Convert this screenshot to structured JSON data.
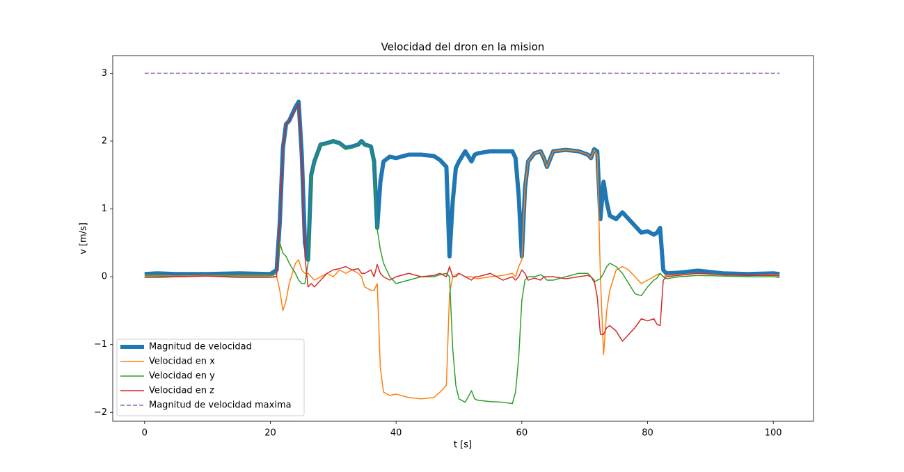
{
  "chart_data": {
    "type": "line",
    "title": "Velocidad del dron en la mision",
    "xlabel": "t [s]",
    "ylabel": "v [m/s]",
    "xlim": [
      -5.07,
      106.4
    ],
    "ylim": [
      -2.13,
      3.26
    ],
    "xticks": [
      0,
      20,
      40,
      60,
      80,
      100
    ],
    "yticks": [
      {
        "value": -2,
        "label": "−2"
      },
      {
        "value": -1,
        "label": "−1"
      },
      0,
      1,
      2,
      3
    ],
    "legend": "lower left",
    "grid": false,
    "x": [
      0,
      2,
      5,
      10,
      15,
      20,
      21,
      21.5,
      22,
      22.5,
      23,
      24,
      24.5,
      25,
      25.5,
      26,
      26.5,
      27,
      28,
      29,
      30,
      31,
      32,
      33,
      34,
      34.5,
      35,
      36,
      36.5,
      37,
      37.5,
      38,
      39,
      40,
      42,
      44,
      46,
      47,
      48,
      48.5,
      49,
      49.5,
      50,
      51,
      52,
      52.5,
      53,
      55,
      57,
      58.5,
      59,
      59.5,
      60,
      60.5,
      61,
      62,
      63,
      63.5,
      64,
      65,
      67,
      69,
      70.5,
      71,
      71.5,
      72,
      72.5,
      73,
      73.5,
      74,
      75,
      76,
      77,
      78,
      79,
      80,
      81,
      81.5,
      82,
      82.5,
      83,
      85,
      88,
      92,
      96,
      100,
      101
    ],
    "series": [
      {
        "name": "Magnitud de velocidad",
        "color": "#1f77b4",
        "linestyle": "solid",
        "values": [
          0.04,
          0.05,
          0.04,
          0.04,
          0.05,
          0.04,
          0.1,
          0.8,
          1.9,
          2.25,
          2.3,
          2.5,
          2.58,
          1.8,
          0.5,
          0.25,
          1.5,
          1.7,
          1.95,
          1.97,
          2.0,
          1.97,
          1.9,
          1.92,
          1.95,
          2.0,
          1.95,
          1.92,
          1.7,
          0.72,
          1.4,
          1.7,
          1.77,
          1.75,
          1.8,
          1.8,
          1.78,
          1.72,
          1.62,
          0.3,
          1.1,
          1.6,
          1.7,
          1.85,
          1.7,
          1.8,
          1.82,
          1.85,
          1.85,
          1.85,
          1.75,
          1.2,
          0.3,
          1.3,
          1.7,
          1.82,
          1.85,
          1.75,
          1.62,
          1.85,
          1.87,
          1.85,
          1.8,
          1.75,
          1.88,
          1.85,
          0.85,
          1.4,
          1.1,
          0.9,
          0.85,
          0.95,
          0.85,
          0.75,
          0.65,
          0.67,
          0.62,
          0.65,
          0.72,
          0.1,
          0.05,
          0.06,
          0.09,
          0.05,
          0.04,
          0.05,
          0.04
        ]
      },
      {
        "name": "Velocidad en x",
        "color": "#ff7f0e",
        "linestyle": "solid",
        "values": [
          0.02,
          0.02,
          0.01,
          0.02,
          0.02,
          0.02,
          0.0,
          -0.2,
          -0.5,
          -0.35,
          -0.1,
          0.2,
          0.25,
          0.1,
          0.05,
          0.05,
          0.0,
          -0.05,
          0.0,
          0.05,
          0.0,
          0.1,
          0.05,
          0.1,
          0.05,
          0.0,
          -0.15,
          -0.2,
          -0.2,
          -0.1,
          -1.35,
          -1.7,
          -1.75,
          -1.73,
          -1.78,
          -1.8,
          -1.78,
          -1.7,
          -1.6,
          -0.25,
          0.0,
          0.03,
          0.05,
          0.0,
          0.0,
          -0.02,
          -0.03,
          0.0,
          0.02,
          0.05,
          0.0,
          0.15,
          0.25,
          1.3,
          1.7,
          1.82,
          1.85,
          1.75,
          1.62,
          1.85,
          1.87,
          1.85,
          1.8,
          1.75,
          1.87,
          1.8,
          0.0,
          -1.15,
          -0.5,
          -0.2,
          0.1,
          0.15,
          0.1,
          0.0,
          -0.1,
          -0.05,
          0.0,
          0.03,
          0.05,
          0.0,
          0.02,
          0.03,
          0.05,
          0.03,
          0.02,
          0.03,
          0.02
        ]
      },
      {
        "name": "Velocidad en y",
        "color": "#2ca02c",
        "linestyle": "solid",
        "values": [
          0.01,
          0.01,
          0.0,
          0.01,
          0.01,
          0.01,
          0.05,
          0.5,
          0.35,
          0.3,
          0.2,
          0.05,
          -0.05,
          -0.1,
          -0.1,
          0.2,
          1.45,
          1.7,
          1.95,
          1.96,
          2.0,
          1.96,
          1.88,
          1.9,
          1.94,
          2.0,
          1.95,
          1.9,
          1.65,
          0.7,
          0.4,
          0.2,
          0.0,
          -0.1,
          -0.05,
          0.0,
          0.0,
          0.03,
          0.05,
          0.0,
          -1.05,
          -1.6,
          -1.8,
          -1.85,
          -1.68,
          -1.8,
          -1.82,
          -1.84,
          -1.85,
          -1.87,
          -1.7,
          -1.2,
          -0.35,
          -0.05,
          0.0,
          0.0,
          0.03,
          0.0,
          -0.05,
          -0.05,
          0.0,
          0.05,
          0.05,
          0.0,
          -0.08,
          -0.05,
          -0.03,
          0.05,
          0.15,
          0.2,
          0.15,
          0.05,
          -0.1,
          -0.25,
          -0.28,
          -0.15,
          -0.05,
          -0.02,
          0.05,
          0.0,
          -0.03,
          0.0,
          0.02,
          0.01,
          0.0,
          0.0,
          -0.01
        ]
      },
      {
        "name": "Velocidad en z",
        "color": "#d62728",
        "linestyle": "solid",
        "values": [
          -0.01,
          -0.01,
          0.0,
          0.01,
          -0.01,
          -0.01,
          0.0,
          0.8,
          1.9,
          2.25,
          2.3,
          2.45,
          2.55,
          1.7,
          0.3,
          -0.15,
          -0.1,
          -0.15,
          -0.05,
          0.05,
          0.1,
          0.12,
          0.15,
          0.1,
          0.12,
          0.05,
          0.05,
          0.1,
          0.0,
          0.18,
          0.05,
          0.0,
          -0.05,
          0.0,
          0.05,
          0.0,
          0.02,
          0.05,
          0.0,
          0.15,
          0.0,
          0.0,
          0.05,
          0.0,
          -0.05,
          0.0,
          0.0,
          0.05,
          -0.05,
          0.0,
          -0.05,
          0.0,
          0.1,
          0.05,
          -0.05,
          -0.02,
          -0.05,
          0.0,
          0.0,
          0.0,
          -0.03,
          0.0,
          0.02,
          0.0,
          -0.05,
          -0.3,
          -0.85,
          -0.85,
          -0.75,
          -0.72,
          -0.8,
          -0.95,
          -0.85,
          -0.75,
          -0.62,
          -0.65,
          -0.62,
          -0.7,
          -0.72,
          -0.05,
          0.0,
          0.02,
          0.05,
          0.03,
          0.02,
          0.02,
          0.01
        ]
      },
      {
        "name": "Magnitud de velocidad maxima",
        "color": "#9467bd",
        "linestyle": "dashed",
        "values": [
          3,
          3,
          3,
          3,
          3,
          3,
          3,
          3,
          3,
          3,
          3,
          3,
          3,
          3,
          3,
          3,
          3,
          3,
          3,
          3,
          3,
          3,
          3,
          3,
          3,
          3,
          3,
          3,
          3,
          3,
          3,
          3,
          3,
          3,
          3,
          3,
          3,
          3,
          3,
          3,
          3,
          3,
          3,
          3,
          3,
          3,
          3,
          3,
          3,
          3,
          3,
          3,
          3,
          3,
          3,
          3,
          3,
          3,
          3,
          3,
          3,
          3,
          3,
          3,
          3,
          3,
          3,
          3,
          3,
          3,
          3,
          3,
          3,
          3,
          3,
          3,
          3,
          3,
          3,
          3,
          3,
          3,
          3,
          3,
          3,
          3,
          3
        ]
      }
    ]
  }
}
